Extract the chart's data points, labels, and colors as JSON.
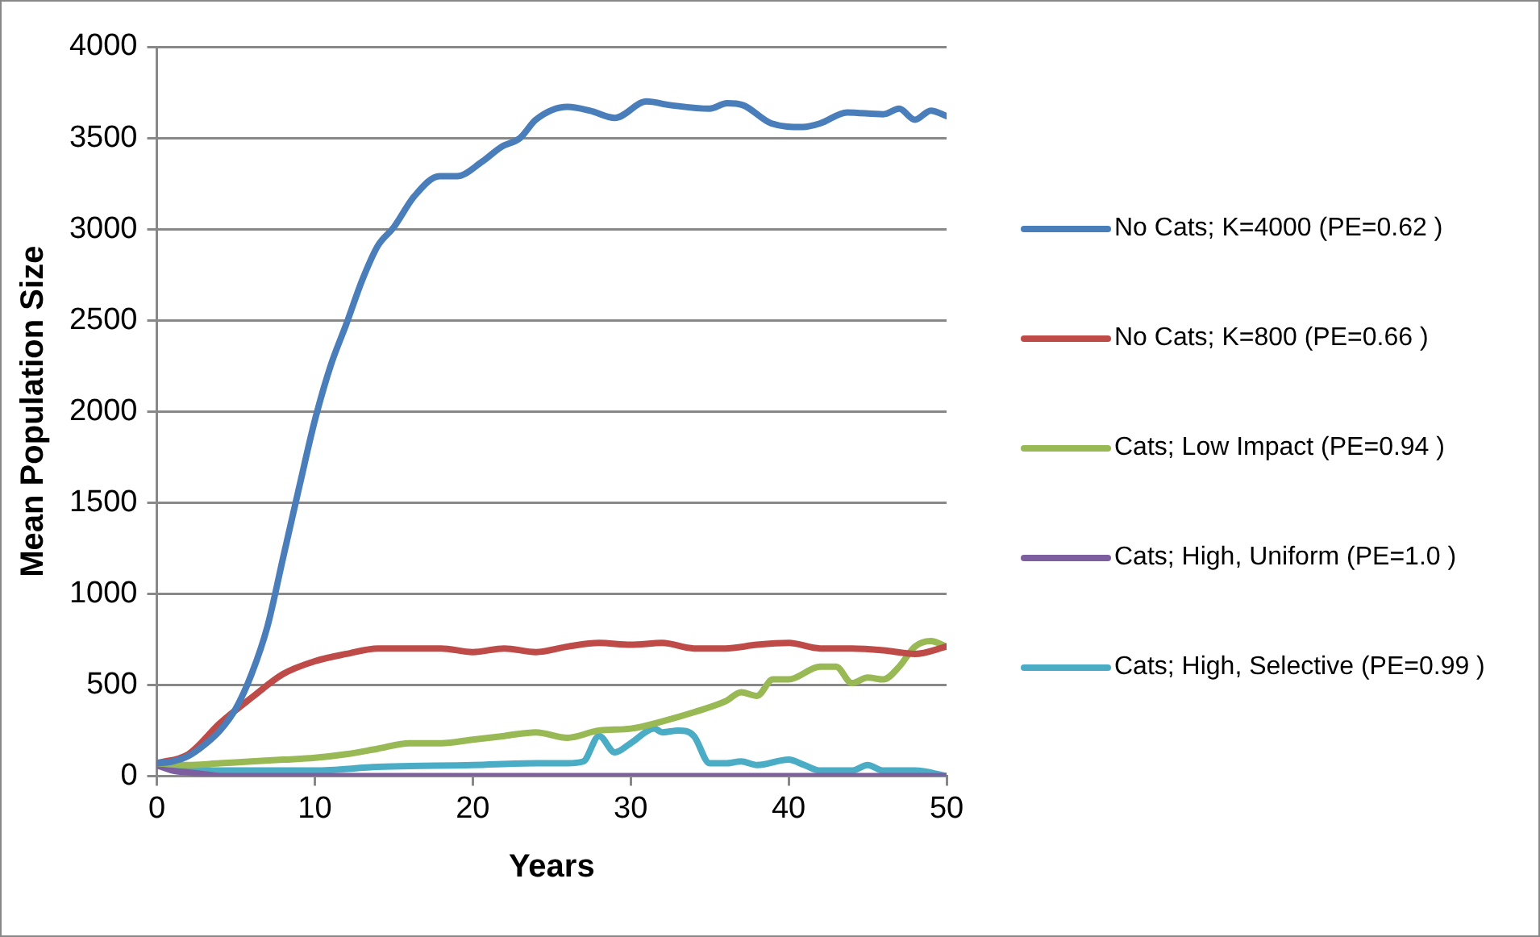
{
  "chart_data": {
    "type": "line",
    "xlabel": "Years",
    "ylabel": "Mean Population Size",
    "xlim": [
      0,
      50
    ],
    "xticks": [
      0,
      10,
      20,
      30,
      40,
      50
    ],
    "ylim": [
      0,
      4000
    ],
    "yticks": [
      0,
      500,
      1000,
      1500,
      2000,
      2500,
      3000,
      3500,
      4000
    ],
    "grid": "y",
    "legend": "right",
    "marker": "none",
    "line_style": "solid",
    "series": [
      {
        "name": "No Cats; K=4000 (PE=0.62 )",
        "color": "#4a7ebb",
        "x": [
          0,
          1,
          2,
          3,
          4,
          5,
          6,
          7,
          8,
          9,
          10,
          11,
          12,
          13,
          14,
          15,
          16.3,
          17.9,
          19,
          20.6,
          21.8,
          23,
          24,
          26,
          27.4,
          29,
          31,
          32.5,
          35,
          36.1,
          37.1,
          38.9,
          40.9,
          42,
          43.7,
          46,
          47,
          48,
          49,
          50
        ],
        "values": [
          70,
          80,
          110,
          170,
          250,
          370,
          560,
          820,
          1200,
          1580,
          1950,
          2250,
          2480,
          2720,
          2910,
          3010,
          3180,
          3290,
          3290,
          3370,
          3450,
          3500,
          3600,
          3670,
          3650,
          3610,
          3700,
          3680,
          3660,
          3690,
          3680,
          3580,
          3560,
          3580,
          3640,
          3630,
          3660,
          3600,
          3650,
          3620
        ]
      },
      {
        "name": "No Cats; K=800 (PE=0.66 )",
        "color": "#be4b48",
        "x": [
          0,
          2,
          4,
          6,
          8,
          10,
          12,
          14,
          16,
          18,
          20,
          22,
          24,
          26,
          28,
          30,
          32,
          34,
          36,
          38,
          40,
          42,
          44,
          46,
          48,
          50
        ],
        "values": [
          70,
          120,
          290,
          430,
          560,
          630,
          670,
          700,
          700,
          700,
          680,
          700,
          680,
          710,
          730,
          720,
          730,
          700,
          700,
          720,
          730,
          700,
          700,
          690,
          670,
          710
        ]
      },
      {
        "name": "Cats; Low Impact (PE=0.94 )",
        "color": "#98b954",
        "x": [
          0,
          2,
          4,
          6,
          8,
          10,
          12,
          14,
          16,
          18,
          20,
          22,
          24,
          26,
          28,
          30,
          32,
          34,
          36,
          37,
          38,
          39,
          40,
          42,
          43,
          44,
          45,
          46,
          47,
          48,
          49,
          50
        ],
        "values": [
          70,
          60,
          70,
          80,
          90,
          100,
          120,
          150,
          180,
          180,
          200,
          220,
          240,
          210,
          250,
          260,
          300,
          350,
          410,
          460,
          440,
          530,
          530,
          600,
          600,
          510,
          540,
          530,
          600,
          710,
          740,
          710
        ]
      },
      {
        "name": "Cats; High, Uniform (PE=1.0 )",
        "color": "#7d5fa0",
        "x": [
          0,
          1,
          2,
          3,
          4,
          5,
          10,
          20,
          30,
          40,
          50
        ],
        "values": [
          60,
          30,
          20,
          10,
          0,
          0,
          0,
          0,
          0,
          0,
          0
        ]
      },
      {
        "name": "Cats; High, Selective (PE=0.99 )",
        "color": "#4bacc6",
        "x": [
          0,
          2,
          4,
          10,
          14,
          20,
          24,
          26,
          27,
          28,
          29,
          30,
          31.5,
          32,
          33,
          34,
          35,
          36,
          37,
          38,
          40,
          41,
          42,
          44,
          45,
          46,
          48,
          50
        ],
        "values": [
          70,
          40,
          30,
          30,
          50,
          60,
          70,
          70,
          80,
          220,
          130,
          180,
          260,
          240,
          250,
          220,
          70,
          70,
          80,
          60,
          90,
          60,
          30,
          30,
          60,
          30,
          30,
          0
        ]
      }
    ]
  }
}
